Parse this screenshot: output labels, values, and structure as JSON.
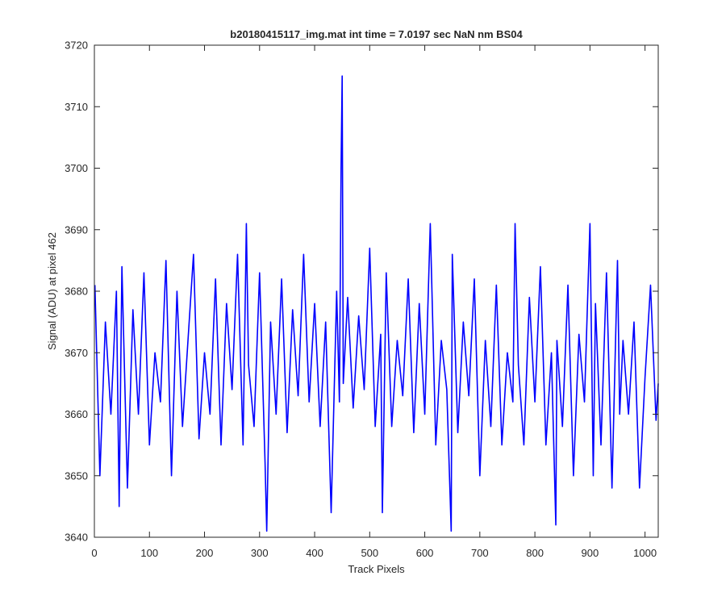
{
  "chart_data": {
    "type": "line",
    "title": "b20180415117_img.mat int time = 7.0197 sec  NaN nm BS04",
    "xlabel": "Track Pixels",
    "ylabel": "Signal (ADU) at pixel 462",
    "xlim": [
      0,
      1024
    ],
    "ylim": [
      3640,
      3720
    ],
    "xticks": [
      "0",
      "100",
      "200",
      "300",
      "400",
      "500",
      "600",
      "700",
      "800",
      "900",
      "1000"
    ],
    "yticks": [
      "3640",
      "3650",
      "3660",
      "3670",
      "3680",
      "3690",
      "3700",
      "3710",
      "3720"
    ],
    "grid": false,
    "legend": "none",
    "series": [
      {
        "color": "#0000ff",
        "x": [
          1,
          10,
          20,
          30,
          40,
          45,
          50,
          60,
          70,
          80,
          90,
          100,
          110,
          120,
          130,
          140,
          150,
          160,
          170,
          180,
          190,
          200,
          210,
          220,
          230,
          240,
          250,
          260,
          270,
          276,
          280,
          290,
          300,
          310,
          313,
          320,
          330,
          340,
          350,
          360,
          370,
          380,
          390,
          400,
          410,
          420,
          430,
          440,
          445,
          448,
          450,
          452,
          460,
          470,
          480,
          490,
          500,
          510,
          520,
          523,
          530,
          540,
          550,
          560,
          570,
          580,
          590,
          600,
          610,
          620,
          630,
          640,
          648,
          650,
          660,
          670,
          680,
          690,
          700,
          710,
          720,
          730,
          740,
          750,
          760,
          764,
          770,
          780,
          790,
          800,
          810,
          820,
          830,
          838,
          840,
          850,
          860,
          870,
          880,
          890,
          900,
          906,
          910,
          920,
          930,
          940,
          950,
          954,
          960,
          970,
          980,
          990,
          1000,
          1010,
          1020,
          1024
        ],
        "y": [
          3681,
          3650,
          3675,
          3660,
          3680,
          3645,
          3684,
          3648,
          3677,
          3660,
          3683,
          3655,
          3670,
          3662,
          3685,
          3650,
          3680,
          3658,
          3672,
          3686,
          3656,
          3670,
          3660,
          3682,
          3655,
          3678,
          3664,
          3686,
          3655,
          3691,
          3668,
          3658,
          3683,
          3652,
          3641,
          3675,
          3660,
          3682,
          3657,
          3677,
          3663,
          3686,
          3662,
          3678,
          3658,
          3675,
          3644,
          3680,
          3662,
          3700,
          3715,
          3665,
          3679,
          3661,
          3676,
          3664,
          3687,
          3658,
          3673,
          3644,
          3683,
          3658,
          3672,
          3663,
          3682,
          3657,
          3678,
          3660,
          3691,
          3655,
          3672,
          3664,
          3641,
          3686,
          3657,
          3675,
          3663,
          3682,
          3650,
          3672,
          3658,
          3681,
          3655,
          3670,
          3662,
          3691,
          3668,
          3655,
          3679,
          3662,
          3684,
          3655,
          3670,
          3642,
          3672,
          3658,
          3681,
          3650,
          3673,
          3662,
          3691,
          3650,
          3678,
          3655,
          3683,
          3648,
          3685,
          3660,
          3672,
          3660,
          3675,
          3648,
          3666,
          3681,
          3659,
          3665
        ]
      }
    ]
  }
}
